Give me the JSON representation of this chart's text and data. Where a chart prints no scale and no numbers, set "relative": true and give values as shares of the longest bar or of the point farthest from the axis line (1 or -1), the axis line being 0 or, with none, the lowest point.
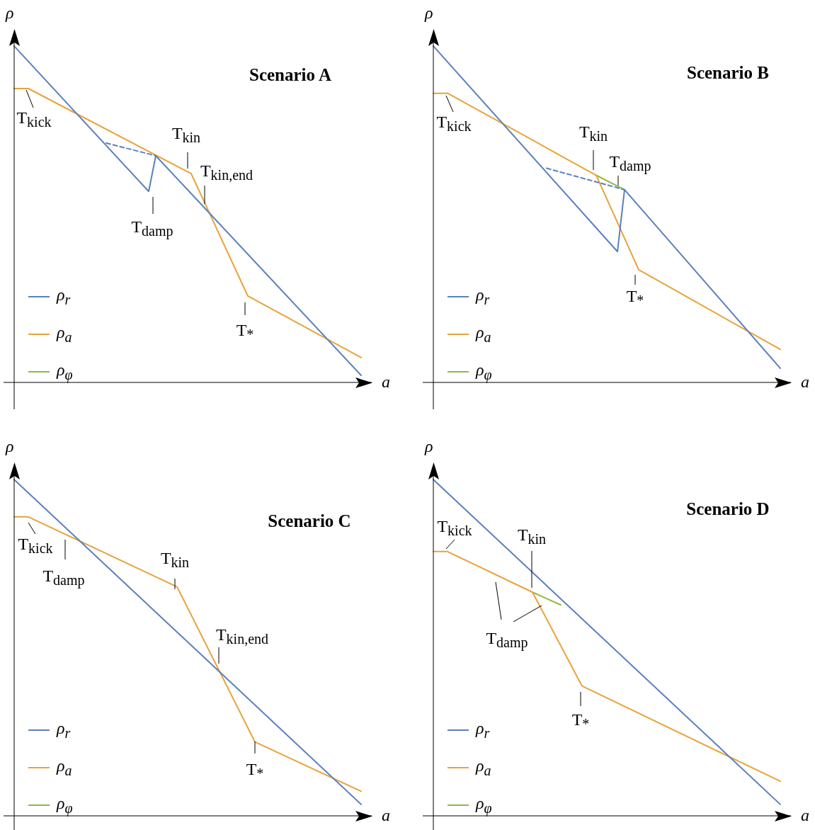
{
  "chart_data": [
    {
      "type": "line",
      "title": "Scenario A",
      "xlabel": "a",
      "ylabel": "ρ",
      "relative": true,
      "legend": "bottom left",
      "categories": [
        null,
        null,
        null,
        null,
        null,
        null,
        null,
        null,
        null,
        null,
        null,
        null,
        null,
        null,
        null,
        null,
        null,
        null,
        null,
        null,
        null,
        null,
        null,
        null,
        null,
        null,
        null,
        null,
        null,
        null,
        null,
        null,
        null,
        null,
        null,
        null,
        null,
        null,
        null,
        null,
        null,
        null,
        null,
        null,
        null,
        null,
        null,
        null,
        null,
        null,
        null
      ],
      "series": [
        {
          "name": "ρ$_{r}$",
          "color": "#5b80bc",
          "values": [
            1.0,
            null,
            null,
            null,
            null,
            null,
            null,
            null,
            null,
            null,
            null,
            null,
            null,
            null,
            null,
            null,
            null,
            null,
            null,
            0.568,
            0.674,
            null,
            null,
            null,
            null,
            null,
            null,
            null,
            null,
            null,
            null,
            null,
            null,
            null,
            null,
            null,
            null,
            null,
            null,
            null,
            null,
            null,
            null,
            null,
            null,
            null,
            null,
            null,
            null,
            0.021,
            null
          ]
        },
        {
          "color": "#5b80bc",
          "line_style": "dashed",
          "values": [
            null,
            null,
            null,
            null,
            null,
            null,
            null,
            null,
            null,
            null,
            null,
            null,
            null,
            0.712,
            null,
            null,
            null,
            null,
            null,
            null,
            0.674,
            null,
            null,
            null,
            null,
            null,
            null,
            null,
            null,
            null,
            null,
            null,
            null,
            null,
            null,
            null,
            null,
            null,
            null,
            null,
            null,
            null,
            null,
            null,
            null,
            null,
            null,
            null,
            null,
            null,
            null
          ]
        },
        {
          "name": "ρ$_{a}$",
          "color": "#e8a33a",
          "values": [
            0.874,
            null,
            0.874,
            null,
            null,
            null,
            null,
            null,
            null,
            null,
            null,
            null,
            null,
            null,
            null,
            null,
            null,
            null,
            null,
            null,
            null,
            null,
            null,
            null,
            null,
            0.621,
            null,
            null,
            null,
            null,
            null,
            null,
            null,
            0.257,
            null,
            null,
            null,
            null,
            null,
            null,
            null,
            null,
            null,
            null,
            null,
            null,
            null,
            null,
            null,
            0.074,
            null
          ]
        },
        {
          "name": "ρ$_{φ}$",
          "color": "#8db943",
          "values": [
            null,
            null,
            null,
            null,
            null,
            null,
            null,
            null,
            null,
            null,
            null,
            null,
            null,
            null,
            null,
            null,
            null,
            null,
            null,
            null,
            null,
            null,
            null,
            null,
            null,
            null,
            null,
            null,
            null,
            null,
            null,
            null,
            null,
            null,
            null,
            null,
            null,
            null,
            null,
            null,
            null,
            null,
            null,
            null,
            null,
            null,
            null,
            null,
            null,
            null,
            null
          ]
        }
      ],
      "annotations": [
        "T$_{kick}$",
        "T$_{kin}$",
        "T$_{kin,end}$",
        "T$_{damp}$",
        "T$_{*}$"
      ]
    },
    {
      "type": "line",
      "title": "Scenario B",
      "xlabel": "a",
      "ylabel": "ρ",
      "relative": true,
      "legend": "bottom left",
      "categories": [
        null,
        null,
        null,
        null,
        null,
        null,
        null,
        null,
        null,
        null,
        null,
        null,
        null,
        null,
        null,
        null,
        null,
        null,
        null,
        null,
        null,
        null,
        null,
        null,
        null,
        null,
        null,
        null,
        null,
        null,
        null,
        null,
        null,
        null,
        null,
        null,
        null,
        null,
        null,
        null,
        null,
        null,
        null,
        null,
        null,
        null,
        null,
        null,
        null,
        null,
        null
      ],
      "series": [
        {
          "name": "ρ$_{r}$",
          "color": "#5b80bc",
          "values": [
            1.0,
            null,
            null,
            null,
            null,
            null,
            null,
            null,
            null,
            null,
            null,
            null,
            null,
            null,
            null,
            null,
            null,
            null,
            null,
            null,
            null,
            null,
            null,
            null,
            null,
            null,
            0.389,
            0.573,
            null,
            null,
            null,
            null,
            null,
            null,
            null,
            null,
            null,
            null,
            null,
            null,
            null,
            null,
            null,
            null,
            null,
            null,
            null,
            null,
            null,
            0.042,
            null
          ]
        },
        {
          "color": "#5b80bc",
          "line_style": "dashed",
          "values": [
            null,
            null,
            null,
            null,
            null,
            null,
            null,
            null,
            null,
            null,
            null,
            null,
            null,
            null,
            null,
            null,
            0.637,
            null,
            null,
            null,
            null,
            null,
            null,
            null,
            null,
            null,
            null,
            0.573,
            null,
            null,
            null,
            null,
            null,
            null,
            null,
            null,
            null,
            null,
            null,
            null,
            null,
            null,
            null,
            null,
            null,
            null,
            null,
            null,
            null,
            null,
            null
          ]
        },
        {
          "name": "ρ$_{a}$",
          "color": "#e8a33a",
          "values": [
            0.86,
            null,
            0.86,
            null,
            null,
            null,
            null,
            null,
            null,
            null,
            null,
            null,
            null,
            null,
            null,
            null,
            null,
            null,
            null,
            null,
            null,
            null,
            null,
            0.616,
            null,
            null,
            null,
            null,
            null,
            0.335,
            null,
            null,
            null,
            null,
            null,
            null,
            null,
            null,
            null,
            null,
            null,
            null,
            null,
            null,
            null,
            null,
            null,
            null,
            null,
            0.098,
            null
          ]
        },
        {
          "name": "ρ$_{φ}$",
          "color": "#8db943",
          "values": [
            null,
            null,
            null,
            null,
            null,
            null,
            null,
            null,
            null,
            null,
            null,
            null,
            null,
            null,
            null,
            null,
            null,
            null,
            null,
            null,
            null,
            null,
            null,
            0.616,
            null,
            null,
            null,
            0.573,
            null,
            null,
            null,
            null,
            null,
            null,
            null,
            null,
            null,
            null,
            null,
            null,
            null,
            null,
            null,
            null,
            null,
            null,
            null,
            null,
            null,
            null,
            null
          ]
        }
      ],
      "annotations": [
        "T$_{kick}$",
        "T$_{kin}$",
        "T$_{damp}$",
        "T$_{*}$"
      ]
    },
    {
      "type": "line",
      "title": "Scenario C",
      "xlabel": "a",
      "ylabel": "ρ",
      "relative": true,
      "legend": "bottom left",
      "categories": [
        null,
        null,
        null,
        null,
        null,
        null,
        null,
        null,
        null,
        null,
        null,
        null,
        null,
        null,
        null,
        null,
        null,
        null,
        null,
        null,
        null,
        null,
        null,
        null,
        null,
        null,
        null,
        null,
        null,
        null,
        null,
        null,
        null,
        null,
        null,
        null,
        null,
        null,
        null,
        null,
        null,
        null,
        null,
        null,
        null,
        null,
        null,
        null,
        null,
        null,
        null
      ],
      "series": [
        {
          "name": "ρ$_{r}$",
          "color": "#5b80bc",
          "values": [
            1.0,
            null,
            null,
            null,
            null,
            null,
            null,
            null,
            null,
            null,
            null,
            null,
            null,
            null,
            null,
            null,
            null,
            null,
            null,
            null,
            null,
            null,
            null,
            null,
            null,
            null,
            null,
            null,
            null,
            null,
            null,
            null,
            null,
            null,
            null,
            null,
            null,
            null,
            null,
            null,
            null,
            null,
            null,
            null,
            null,
            null,
            null,
            null,
            null,
            0.034,
            null
          ]
        },
        {
          "name": "ρ$_{a}$",
          "color": "#e8a33a",
          "values": [
            0.889,
            null,
            0.889,
            null,
            null,
            null,
            null,
            null,
            null,
            null,
            null,
            null,
            null,
            null,
            null,
            null,
            null,
            null,
            null,
            null,
            null,
            null,
            null,
            0.681,
            null,
            null,
            null,
            null,
            null,
            null,
            null,
            null,
            null,
            null,
            0.22,
            null,
            null,
            null,
            null,
            null,
            null,
            null,
            null,
            null,
            null,
            null,
            null,
            null,
            null,
            0.073,
            null
          ]
        },
        {
          "name": "ρ$_{φ}$",
          "color": "#8db943",
          "values": [
            null,
            null,
            null,
            null,
            null,
            null,
            null,
            null,
            null,
            null,
            null,
            null,
            null,
            null,
            null,
            null,
            null,
            null,
            null,
            null,
            null,
            null,
            null,
            null,
            null,
            null,
            null,
            null,
            null,
            null,
            null,
            null,
            null,
            null,
            null,
            null,
            null,
            null,
            null,
            null,
            null,
            null,
            null,
            null,
            null,
            null,
            null,
            null,
            null,
            null,
            null
          ]
        }
      ],
      "annotations": [
        "T$_{kick}$",
        "T$_{damp}$",
        "T$_{kin}$",
        "T$_{kin,end}$",
        "T$_{*}$"
      ]
    },
    {
      "type": "line",
      "title": "Scenario D",
      "xlabel": "a",
      "ylabel": "ρ",
      "relative": true,
      "legend": "bottom left",
      "categories": [
        null,
        null,
        null,
        null,
        null,
        null,
        null,
        null,
        null,
        null,
        null,
        null,
        null,
        null,
        null,
        null,
        null,
        null,
        null,
        null,
        null,
        null,
        null,
        null,
        null,
        null,
        null,
        null,
        null,
        null,
        null,
        null,
        null,
        null,
        null,
        null,
        null,
        null,
        null,
        null,
        null,
        null,
        null,
        null,
        null,
        null,
        null,
        null,
        null,
        null,
        null
      ],
      "series": [
        {
          "name": "ρ$_{r}$",
          "color": "#5b80bc",
          "values": [
            1.0,
            null,
            null,
            null,
            null,
            null,
            null,
            null,
            null,
            null,
            null,
            null,
            null,
            null,
            null,
            null,
            null,
            null,
            null,
            null,
            null,
            null,
            null,
            null,
            null,
            null,
            null,
            null,
            null,
            null,
            null,
            null,
            null,
            null,
            null,
            null,
            null,
            null,
            null,
            null,
            null,
            null,
            null,
            null,
            null,
            null,
            null,
            null,
            null,
            0.034,
            null
          ]
        },
        {
          "name": "ρ$_{a}$",
          "color": "#e8a33a",
          "values": [
            0.786,
            null,
            0.786,
            null,
            null,
            null,
            null,
            null,
            null,
            null,
            null,
            null,
            null,
            null,
            0.665,
            null,
            null,
            null,
            null,
            null,
            null,
            0.386,
            null,
            null,
            null,
            null,
            null,
            null,
            null,
            null,
            null,
            null,
            null,
            null,
            null,
            null,
            null,
            null,
            null,
            null,
            null,
            null,
            null,
            null,
            null,
            null,
            null,
            null,
            null,
            0.103,
            null
          ]
        },
        {
          "name": "ρ$_{φ}$",
          "color": "#8db943",
          "values": [
            null,
            null,
            null,
            null,
            null,
            null,
            null,
            null,
            null,
            null,
            null,
            null,
            null,
            null,
            0.665,
            null,
            null,
            null,
            0.627,
            null,
            null,
            null,
            null,
            null,
            null,
            null,
            null,
            null,
            null,
            null,
            null,
            null,
            null,
            null,
            null,
            null,
            null,
            null,
            null,
            null,
            null,
            null,
            null,
            null,
            null,
            null,
            null,
            null,
            null,
            null,
            null
          ]
        }
      ],
      "annotations": [
        "T$_{kick}$",
        "T$_{kin}$",
        "T$_{damp}$",
        "T$_{*}$"
      ]
    }
  ]
}
